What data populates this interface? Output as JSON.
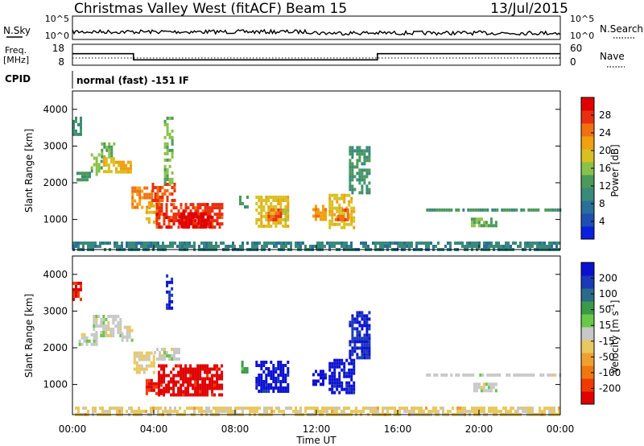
{
  "header": {
    "station": "Christmas Valley West (fitACF)",
    "beam": "Beam 15",
    "date": "13/Jul/2015"
  },
  "noise_panel": {
    "left_label": "N.Sky",
    "left_ticks": [
      "10^5",
      "10^0"
    ],
    "right_ticks": [
      "10^5",
      "10^0"
    ],
    "right_label": "N.Search"
  },
  "freq_panel": {
    "left_label_1": "Freq.",
    "left_label_2": "[MHz]",
    "left_ticks": [
      "18",
      "8"
    ],
    "right_ticks": [
      "60",
      "0"
    ],
    "right_label": "Nave",
    "freq_levels": [
      {
        "from_hour": 0.0,
        "to_hour": 3.0,
        "value": 14.5
      },
      {
        "from_hour": 3.0,
        "to_hour": 15.0,
        "value": 10.5
      },
      {
        "from_hour": 15.0,
        "to_hour": 24.0,
        "value": 14.5
      }
    ],
    "nave_value": 22
  },
  "cpid": {
    "label": "CPID",
    "text": "normal (fast) -151 IF"
  },
  "x_axis": {
    "ticks": [
      "00:00",
      "04:00",
      "08:00",
      "12:00",
      "16:00",
      "20:00",
      "00:00"
    ],
    "label": "Time UT"
  },
  "chart_data": [
    {
      "type": "heatmap",
      "title": "Power",
      "ylabel": "Slant Range [km]",
      "y_ticks": [
        "4000",
        "3000",
        "2000",
        "1000"
      ],
      "ylim": [
        180,
        4500
      ],
      "xlim_hours": [
        0,
        24
      ],
      "colorbar": {
        "label": "Power [dB]",
        "ticks": [
          "28",
          "24",
          "20",
          "16",
          "12",
          "8",
          "4"
        ],
        "range": [
          0,
          30
        ],
        "colors": [
          "#0a1fe0",
          "#1f4fb0",
          "#2a6e9a",
          "#3a8a7a",
          "#4a9a5a",
          "#88c24a",
          "#d8c020",
          "#f0a010",
          "#f07010",
          "#e83010",
          "#e00000"
        ]
      },
      "regions": [
        {
          "t": [
            0.0,
            0.4
          ],
          "r": [
            3300,
            3800
          ],
          "value": 10
        },
        {
          "t": [
            0.2,
            0.8
          ],
          "r": [
            2100,
            2300
          ],
          "value": 12
        },
        {
          "t": [
            0.9,
            1.4
          ],
          "r": [
            2200,
            2800
          ],
          "value": 14
        },
        {
          "t": [
            1.4,
            2.0
          ],
          "r": [
            2700,
            3100
          ],
          "value": 13
        },
        {
          "t": [
            1.5,
            2.0
          ],
          "r": [
            2300,
            2700
          ],
          "value": 18
        },
        {
          "t": [
            2.1,
            2.9
          ],
          "r": [
            2300,
            2600
          ],
          "value": 20
        },
        {
          "t": [
            2.9,
            3.9
          ],
          "r": [
            1300,
            1900
          ],
          "value": 22
        },
        {
          "t": [
            3.6,
            4.3
          ],
          "r": [
            900,
            1500
          ],
          "value": 19
        },
        {
          "t": [
            3.9,
            5.0
          ],
          "r": [
            1500,
            2000
          ],
          "value": 25
        },
        {
          "t": [
            4.1,
            7.4
          ],
          "r": [
            750,
            1450
          ],
          "value": 26
        },
        {
          "t": [
            5.2,
            6.8
          ],
          "r": [
            800,
            1200
          ],
          "value": 29
        },
        {
          "t": [
            4.5,
            4.9
          ],
          "r": [
            2000,
            3800
          ],
          "value": 14
        },
        {
          "t": [
            8.2,
            8.6
          ],
          "r": [
            1300,
            1650
          ],
          "value": 12
        },
        {
          "t": [
            9.0,
            10.6
          ],
          "r": [
            850,
            1650
          ],
          "value": 18
        },
        {
          "t": [
            9.6,
            10.2
          ],
          "r": [
            950,
            1300
          ],
          "value": 24
        },
        {
          "t": [
            11.8,
            12.4
          ],
          "r": [
            1000,
            1400
          ],
          "value": 21
        },
        {
          "t": [
            12.6,
            13.9
          ],
          "r": [
            800,
            1700
          ],
          "value": 18
        },
        {
          "t": [
            12.9,
            13.5
          ],
          "r": [
            1000,
            1300
          ],
          "value": 24
        },
        {
          "t": [
            13.6,
            14.6
          ],
          "r": [
            1700,
            3000
          ],
          "value": 11
        },
        {
          "t": [
            17.4,
            24.0
          ],
          "r": [
            1220,
            1300
          ],
          "value": 11
        },
        {
          "t": [
            19.6,
            20.9
          ],
          "r": [
            850,
            1050
          ],
          "value": 13
        },
        {
          "t": [
            0.0,
            24.0
          ],
          "r": [
            180,
            400
          ],
          "value": 9
        }
      ]
    },
    {
      "type": "heatmap",
      "title": "Velocity",
      "ylabel": "Slant Range [km]",
      "y_ticks": [
        "4000",
        "3000",
        "2000",
        "1000"
      ],
      "ylim": [
        180,
        4500
      ],
      "xlim_hours": [
        0,
        24
      ],
      "colorbar": {
        "label": "Velocity [m s",
        "label_sup": "-1",
        "label_end": "]",
        "ticks": [
          "200",
          "100",
          "50",
          "15",
          "-15",
          "-50",
          "-100",
          "-200"
        ],
        "range": [
          -250,
          250
        ],
        "colors": [
          "#e00000",
          "#f03a00",
          "#f07810",
          "#f0a030",
          "#e8c860",
          "#c8c8c8",
          "#68c848",
          "#3a9a4a",
          "#2a6a8a",
          "#1a3ab8",
          "#0a10d0"
        ]
      },
      "regions": [
        {
          "t": [
            0.0,
            0.4
          ],
          "r": [
            3300,
            3800
          ],
          "value": -200
        },
        {
          "t": [
            0.3,
            1.2
          ],
          "r": [
            2100,
            2400
          ],
          "value": 0
        },
        {
          "t": [
            1.0,
            2.4
          ],
          "r": [
            2300,
            2900
          ],
          "value": 0
        },
        {
          "t": [
            2.4,
            2.9
          ],
          "r": [
            2200,
            2600
          ],
          "value": 0
        },
        {
          "t": [
            3.0,
            4.0
          ],
          "r": [
            1350,
            1900
          ],
          "value": -35
        },
        {
          "t": [
            4.0,
            5.2
          ],
          "r": [
            1700,
            2000
          ],
          "value": 0
        },
        {
          "t": [
            3.6,
            4.4
          ],
          "r": [
            750,
            1150
          ],
          "value": -200
        },
        {
          "t": [
            4.2,
            7.4
          ],
          "r": [
            750,
            1550
          ],
          "value": -230
        },
        {
          "t": [
            4.6,
            4.9
          ],
          "r": [
            3100,
            4000
          ],
          "value": 200
        },
        {
          "t": [
            8.3,
            8.6
          ],
          "r": [
            1300,
            1650
          ],
          "value": 80
        },
        {
          "t": [
            9.0,
            10.6
          ],
          "r": [
            850,
            1650
          ],
          "value": 230
        },
        {
          "t": [
            11.8,
            12.4
          ],
          "r": [
            1000,
            1400
          ],
          "value": 230
        },
        {
          "t": [
            12.6,
            13.9
          ],
          "r": [
            800,
            1700
          ],
          "value": 230
        },
        {
          "t": [
            13.6,
            14.6
          ],
          "r": [
            1700,
            3000
          ],
          "value": 200
        },
        {
          "t": [
            17.4,
            24.0
          ],
          "r": [
            1230,
            1300
          ],
          "value": 0
        },
        {
          "t": [
            19.6,
            20.9
          ],
          "r": [
            850,
            1050
          ],
          "value": 0
        },
        {
          "t": [
            0.0,
            24.0
          ],
          "r": [
            180,
            400
          ],
          "value": -40
        }
      ]
    }
  ]
}
